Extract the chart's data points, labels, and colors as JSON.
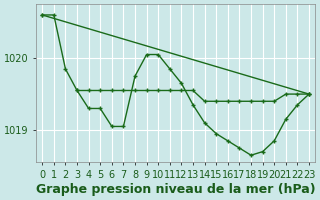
{
  "title": "Graphe pression niveau de la mer (hPa)",
  "bg_color": "#cce8e8",
  "grid_color": "#ffffff",
  "line_color": "#1a6b1a",
  "marker_color": "#1a6b1a",
  "text_color": "#1a5c1a",
  "ylim": [
    1018.55,
    1020.75
  ],
  "xlim": [
    -0.5,
    23.5
  ],
  "yticks": [
    1019.0,
    1020.0
  ],
  "xticks": [
    0,
    1,
    2,
    3,
    4,
    5,
    6,
    7,
    8,
    9,
    10,
    11,
    12,
    13,
    14,
    15,
    16,
    17,
    18,
    19,
    20,
    21,
    22,
    23
  ],
  "line1_x": [
    0,
    1,
    2,
    3,
    4,
    5,
    6,
    7,
    8,
    9,
    10,
    11,
    12,
    13,
    14,
    15,
    16,
    17,
    18,
    19,
    20,
    21,
    22,
    23
  ],
  "line1_y": [
    1020.6,
    1020.6,
    1019.85,
    1019.55,
    1019.3,
    1019.3,
    1019.05,
    1019.05,
    1019.75,
    1020.05,
    1020.05,
    1019.85,
    1019.65,
    1019.35,
    1019.1,
    1018.95,
    1018.85,
    1018.75,
    1018.65,
    1018.7,
    1018.85,
    1019.15,
    1019.35,
    1019.5
  ],
  "line2_x": [
    3,
    4,
    5,
    6,
    7,
    8,
    9,
    10,
    11,
    12,
    13,
    14,
    15,
    16,
    17,
    18,
    19,
    20,
    21,
    22,
    23
  ],
  "line2_y": [
    1019.55,
    1019.55,
    1019.55,
    1019.55,
    1019.55,
    1019.55,
    1019.55,
    1019.55,
    1019.55,
    1019.55,
    1019.55,
    1019.4,
    1019.4,
    1019.4,
    1019.4,
    1019.4,
    1019.4,
    1019.4,
    1019.5,
    1019.5,
    1019.5
  ],
  "line3_x": [
    0,
    23
  ],
  "line3_y": [
    1020.6,
    1019.5
  ],
  "fontsize_label": 9,
  "fontsize_tick": 7.0
}
